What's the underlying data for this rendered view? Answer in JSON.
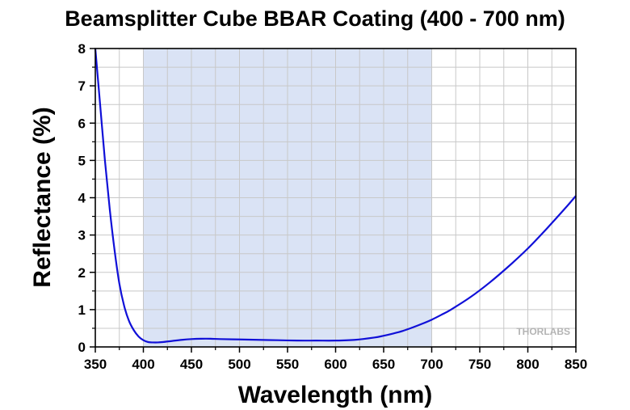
{
  "chart_data": {
    "type": "line",
    "title": "Beamsplitter Cube BBAR Coating (400 - 700 nm)",
    "xlabel": "Wavelength (nm)",
    "ylabel": "Reflectance (%)",
    "xlim": [
      350,
      850
    ],
    "ylim": [
      0,
      8
    ],
    "xticks": [
      350,
      400,
      450,
      500,
      550,
      600,
      650,
      700,
      750,
      800,
      850
    ],
    "yticks": [
      0,
      1,
      2,
      3,
      4,
      5,
      6,
      7,
      8
    ],
    "grid": true,
    "highlight_band": [
      400,
      700
    ],
    "colors": {
      "line": "#1010d8",
      "band": "#dae3f5",
      "grid": "#c8c8c8"
    },
    "series": [
      {
        "x": [
          350,
          355,
          360,
          365,
          370,
          375,
          380,
          385,
          390,
          395,
          400,
          405,
          410,
          415,
          420,
          430,
          440,
          450,
          460,
          470,
          480,
          500,
          520,
          540,
          560,
          580,
          600,
          620,
          640,
          650,
          660,
          670,
          680,
          690,
          700,
          710,
          720,
          740,
          760,
          780,
          800,
          820,
          840,
          850
        ],
        "y": [
          8.0,
          6.5,
          5.0,
          3.7,
          2.6,
          1.7,
          1.1,
          0.7,
          0.45,
          0.28,
          0.18,
          0.13,
          0.12,
          0.12,
          0.13,
          0.16,
          0.19,
          0.21,
          0.22,
          0.22,
          0.21,
          0.2,
          0.19,
          0.18,
          0.17,
          0.17,
          0.17,
          0.19,
          0.25,
          0.3,
          0.36,
          0.43,
          0.52,
          0.62,
          0.73,
          0.86,
          1.0,
          1.33,
          1.72,
          2.16,
          2.64,
          3.18,
          3.75,
          4.05
        ]
      }
    ],
    "watermark": "THORLABS"
  }
}
